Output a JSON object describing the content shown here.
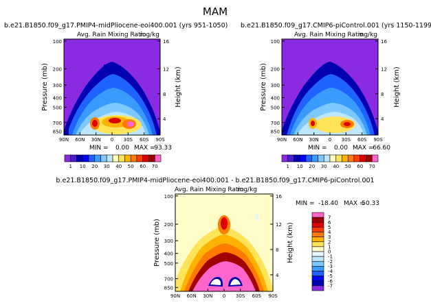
{
  "page_title": "MAM",
  "colors": {
    "bg_fill": "#8a2be2",
    "diff_bg": "#fffdc8",
    "axis": "#000000"
  },
  "chart_data": [
    {
      "type": "heatmap",
      "title": "b.e21.B1850.f09_g17.PMIP4-midPliocene-eoi400.001 (yrs 951-1050)",
      "subtitle_left": "Avg. Rain Mixing Ratio",
      "units": "mg/kg",
      "ylabel": "Pressure (mb)",
      "ylabel_right": "Height (km)",
      "x_ticks": [
        "90N",
        "60N",
        "30N",
        "0",
        "30S",
        "60S",
        "90S"
      ],
      "y_ticks": [
        "100",
        "200",
        "300",
        "400",
        "500",
        "700",
        "850"
      ],
      "y_ticks_right": [
        "16",
        "12",
        "8",
        "4"
      ],
      "min_label": "MIN =",
      "min_value": "0.00",
      "max_label": "MAX =",
      "max_value": "93.33"
    },
    {
      "type": "heatmap",
      "title": "b.e21.B1850.f09_g17.CMIP6-piControl.001 (yrs 1150-1199)",
      "subtitle_left": "Avg. Rain Mixing Ratio",
      "units": "mg/kg",
      "ylabel": "Pressure (mb)",
      "ylabel_right": "Height (km)",
      "x_ticks": [
        "90N",
        "60N",
        "30N",
        "0",
        "30S",
        "60S",
        "90S"
      ],
      "y_ticks": [
        "100",
        "200",
        "300",
        "400",
        "500",
        "700",
        "850"
      ],
      "y_ticks_right": [
        "16",
        "12",
        "8",
        "4"
      ],
      "min_label": "MIN =",
      "min_value": "0.00",
      "max_label": "MAX =",
      "max_value": "66.60"
    },
    {
      "type": "heatmap",
      "title": "b.e21.B1850.f09_g17.PMIP4-midPliocene-eoi400.001 - b.e21.B1850.f09_g17.CMIP6-piControl.001",
      "subtitle_left": "Avg. Rain Mixing Ratio",
      "units": "mg/kg",
      "ylabel": "Pressure (mb)",
      "ylabel_right": "Height (km)",
      "x_ticks": [
        "90N",
        "60N",
        "30N",
        "0",
        "30S",
        "60S",
        "90S"
      ],
      "y_ticks": [
        "100",
        "200",
        "300",
        "400",
        "500",
        "700",
        "850"
      ],
      "y_ticks_right": [
        "16",
        "12",
        "8",
        "4"
      ],
      "min_label": "MIN =",
      "min_value": "-18.40",
      "max_label": "MAX =",
      "max_value": "50.33"
    }
  ],
  "colorbar_top": {
    "labels": [
      "1",
      "10",
      "20",
      "30",
      "40",
      "50",
      "60",
      "70"
    ],
    "colors": [
      "#8a2be2",
      "#4a1fcf",
      "#0000b0",
      "#0000ff",
      "#1e63ff",
      "#3a9bff",
      "#7cc8ff",
      "#bfe6ff",
      "#ffffc0",
      "#ffe45a",
      "#ffb300",
      "#ff7a00",
      "#ff3b00",
      "#dc0000",
      "#a00000",
      "#ff66cc"
    ]
  },
  "colorbar_diff": {
    "labels": [
      "7",
      "6",
      "5",
      "4",
      "3",
      "2",
      "1",
      "0",
      "-1",
      "-2",
      "-3",
      "-4",
      "-5",
      "-6",
      "-7"
    ],
    "colors": [
      "#ff66cc",
      "#a00000",
      "#dc0000",
      "#ff3b00",
      "#ff7a00",
      "#ffb300",
      "#ffe45a",
      "#fffdc8",
      "#e6f7ff",
      "#bfe6ff",
      "#7cc8ff",
      "#3a9bff",
      "#1e63ff",
      "#0000ff",
      "#0000b0",
      "#8a2be2"
    ]
  }
}
